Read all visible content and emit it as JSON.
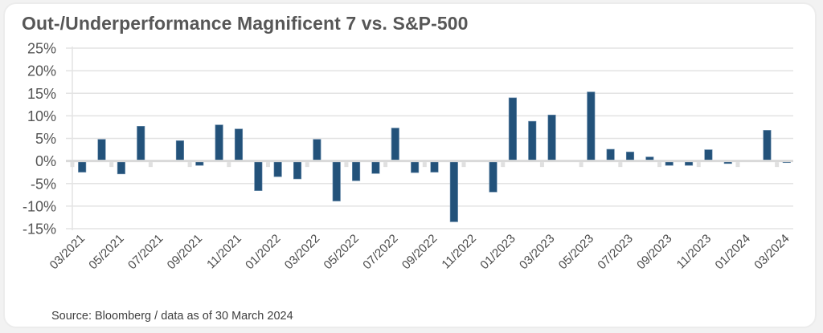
{
  "card": {
    "title": "Out-/Underperformance Magnificent 7 vs. S&P-500",
    "source": "Source: Bloomberg / data as of 30 March 2024"
  },
  "chart_data": {
    "type": "bar",
    "title": "Out-/Underperformance Magnificent 7 vs. S&P-500",
    "xlabel": "",
    "ylabel": "",
    "ylim": [
      -15,
      25
    ],
    "yticks": [
      25,
      20,
      15,
      10,
      5,
      0,
      -5,
      -10,
      -15
    ],
    "ytick_labels": [
      "25%",
      "20%",
      "15%",
      "10%",
      "5%",
      "0%",
      "-5%",
      "-10%",
      "-15%"
    ],
    "grid": true,
    "legend": "none",
    "bar_color": "#23527a",
    "categories": [
      "03/2021",
      "04/2021",
      "05/2021",
      "06/2021",
      "07/2021",
      "08/2021",
      "09/2021",
      "10/2021",
      "11/2021",
      "12/2021",
      "01/2022",
      "02/2022",
      "03/2022",
      "04/2022",
      "05/2022",
      "06/2022",
      "07/2022",
      "08/2022",
      "09/2022",
      "10/2022",
      "11/2022",
      "12/2022",
      "01/2023",
      "02/2023",
      "03/2023",
      "04/2023",
      "05/2023",
      "06/2023",
      "07/2023",
      "08/2023",
      "09/2023",
      "10/2023",
      "11/2023",
      "12/2023",
      "01/2024",
      "02/2024",
      "03/2024"
    ],
    "xtick_labels": [
      "03/2021",
      "05/2021",
      "07/2021",
      "09/2021",
      "11/2021",
      "01/2022",
      "03/2022",
      "05/2022",
      "07/2022",
      "09/2022",
      "11/2022",
      "01/2023",
      "03/2023",
      "05/2023",
      "07/2023",
      "09/2023",
      "11/2023",
      "01/2024",
      "03/2024"
    ],
    "values": [
      -2.3,
      4.8,
      -2.7,
      7.7,
      0,
      4.5,
      -0.8,
      8.0,
      7.1,
      -6.4,
      -3.3,
      -3.8,
      4.8,
      -8.7,
      -4.2,
      -2.6,
      7.3,
      -2.4,
      -2.3,
      -13.3,
      0,
      -6.7,
      14.0,
      8.8,
      10.2,
      0,
      15.3,
      2.6,
      2.0,
      0.9,
      -0.8,
      -0.8,
      2.5,
      -0.4,
      0,
      6.8,
      -0.2
    ],
    "unit": "%"
  }
}
